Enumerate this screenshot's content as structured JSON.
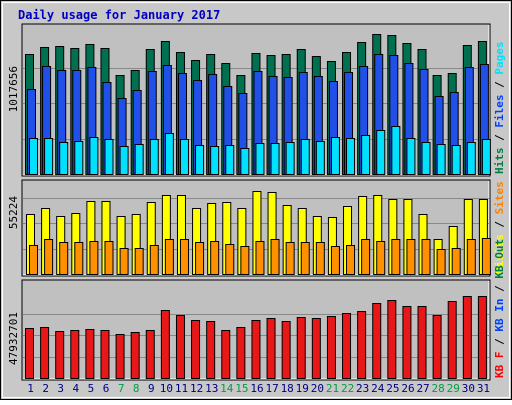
{
  "chart_data": {
    "type": "bar",
    "title": "Daily usage for January 2017",
    "categories": [
      "1",
      "2",
      "3",
      "4",
      "5",
      "6",
      "7",
      "8",
      "9",
      "10",
      "11",
      "12",
      "13",
      "14",
      "15",
      "16",
      "17",
      "18",
      "19",
      "20",
      "21",
      "22",
      "23",
      "24",
      "25",
      "26",
      "27",
      "28",
      "29",
      "30",
      "31"
    ],
    "weekend_categories": [
      "7",
      "8",
      "14",
      "15",
      "21",
      "22",
      "28",
      "29"
    ],
    "panels": [
      {
        "id": "requests",
        "ylabel_max": "1017656",
        "ymax": 1400000,
        "legend": [
          {
            "text": "Hits",
            "color": "#008040"
          },
          {
            "text": " / ",
            "color": "#000000"
          },
          {
            "text": "Files",
            "color": "#0040ff"
          },
          {
            "text": " / ",
            "color": "#000000"
          },
          {
            "text": "Pages",
            "color": "#00e0ff"
          }
        ],
        "series": [
          {
            "name": "Hits",
            "color": "#007050",
            "values": [
              1148000,
              1220000,
              1227000,
              1210000,
              1242000,
              1211000,
              946000,
              997000,
              1197000,
              1275000,
              1174000,
              1096000,
              1146000,
              1069000,
              946000,
              1164000,
              1143000,
              1147000,
              1197000,
              1131000,
              1082000,
              1166000,
              1268000,
              1339000,
              1337000,
              1259000,
              1200000,
              946000,
              966000,
              1234000,
              1278000
            ]
          },
          {
            "name": "Files",
            "color": "#2050e8",
            "values": [
              818000,
              1034000,
              993000,
              1000000,
              1022000,
              886000,
              725000,
              804000,
              989000,
              1045000,
              965000,
              901000,
              963000,
              848000,
              776000,
              983000,
              940000,
              931000,
              977000,
              938000,
              889000,
              974000,
              1034000,
              1148000,
              1138000,
              1068000,
              1007000,
              745000,
              786000,
              1027000,
              1053000
            ]
          },
          {
            "name": "Pages",
            "color": "#00e0ff",
            "values": [
              345000,
              345000,
              311000,
              315000,
              356000,
              331000,
              272000,
              292000,
              331000,
              394000,
              340000,
              278000,
              265000,
              276000,
              247000,
              295000,
              298000,
              309000,
              336000,
              320000,
              354000,
              342000,
              371000,
              419000,
              458000,
              344000,
              308000,
              288000,
              279000,
              311000,
              334000
            ]
          }
        ]
      },
      {
        "id": "visits",
        "ylabel_max": "55224",
        "ymax": 65000,
        "legend": [
          {
            "text": "Visits",
            "color": "#ffff00"
          },
          {
            "text": " / ",
            "color": "#000000"
          },
          {
            "text": "Sites",
            "color": "#ff8000"
          }
        ],
        "series": [
          {
            "name": "Visits",
            "color": "#ffff00",
            "values": [
              43000,
              48000,
              42000,
              44000,
              53000,
              53000,
              42000,
              43000,
              52000,
              57000,
              57000,
              48000,
              51000,
              52000,
              48000,
              60000,
              59000,
              50000,
              48000,
              42000,
              41000,
              49000,
              56000,
              57000,
              54000,
              54000,
              43000,
              25000,
              35000,
              54000,
              54000
            ]
          },
          {
            "name": "Sites",
            "color": "#ff9000",
            "values": [
              21000,
              25000,
              23000,
              23000,
              24000,
              24000,
              19000,
              19000,
              21000,
              25000,
              25000,
              23000,
              24000,
              22000,
              20000,
              24000,
              25000,
              23000,
              23000,
              23000,
              20000,
              21000,
              25000,
              24000,
              25000,
              25000,
              25000,
              18000,
              19000,
              25000,
              26000
            ]
          }
        ]
      },
      {
        "id": "kbytes",
        "ylabel_max": "47932701",
        "ymax": 70000000,
        "legend": [
          {
            "text": "KB F",
            "color": "#ff0000"
          },
          {
            "text": " / ",
            "color": "#000000"
          },
          {
            "text": "KB In",
            "color": "#0040ff"
          },
          {
            "text": " / ",
            "color": "#000000"
          },
          {
            "text": "KB Out",
            "color": "#008040"
          }
        ],
        "series": [
          {
            "name": "KB F",
            "color": "#e81818",
            "values": [
              37500000,
              37800000,
              35100000,
              35800000,
              36400000,
              35600000,
              33100000,
              34000000,
              35500000,
              51000000,
              47000000,
              43000000,
              42700000,
              35900000,
              37900000,
              43100000,
              44500000,
              42100000,
              45200000,
              45000000,
              46300000,
              48600000,
              50100000,
              56200000,
              57800000,
              53500000,
              53500000,
              47000000,
              57000000,
              61300000,
              61000000
            ]
          }
        ]
      }
    ]
  }
}
